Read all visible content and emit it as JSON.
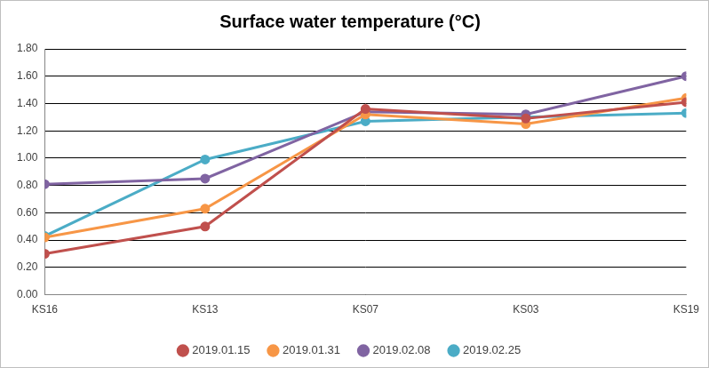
{
  "chart_data": {
    "type": "line",
    "title": "Surface water temperature (°C)",
    "categories": [
      "KS16",
      "KS13",
      "KS07",
      "KS03",
      "KS19"
    ],
    "series": [
      {
        "name": "2019.01.15",
        "color": "#c0504d",
        "values": [
          0.3,
          0.5,
          1.36,
          1.29,
          1.41
        ],
        "marker": "circle",
        "line_style": "solid"
      },
      {
        "name": "2019.01.31",
        "color": "#f79646",
        "values": [
          0.42,
          0.63,
          1.32,
          1.25,
          1.44
        ],
        "marker": "circle",
        "line_style": "solid"
      },
      {
        "name": "2019.02.08",
        "color": "#8064a2",
        "values": [
          0.81,
          0.85,
          1.34,
          1.32,
          1.6
        ],
        "marker": "circle",
        "line_style": "solid"
      },
      {
        "name": "2019.02.25",
        "color": "#4bacc6",
        "values": [
          0.43,
          0.99,
          1.27,
          1.3,
          1.33
        ],
        "marker": "circle",
        "line_style": "solid"
      }
    ],
    "ylim": [
      0,
      1.8
    ],
    "yticks": [
      {
        "value": 0,
        "label": "0.00"
      },
      {
        "value": 0.2,
        "label": "0.20"
      },
      {
        "value": 0.4,
        "label": "0.40"
      },
      {
        "value": 0.6,
        "label": "0.60"
      },
      {
        "value": 0.8,
        "label": "0.80"
      },
      {
        "value": 1.0,
        "label": "1.00"
      },
      {
        "value": 1.2,
        "label": "1.20"
      },
      {
        "value": 1.4,
        "label": "1.40"
      },
      {
        "value": 1.6,
        "label": "1.60"
      },
      {
        "value": 1.8,
        "label": "1.80"
      }
    ],
    "grid": true,
    "legend": "bottom"
  }
}
